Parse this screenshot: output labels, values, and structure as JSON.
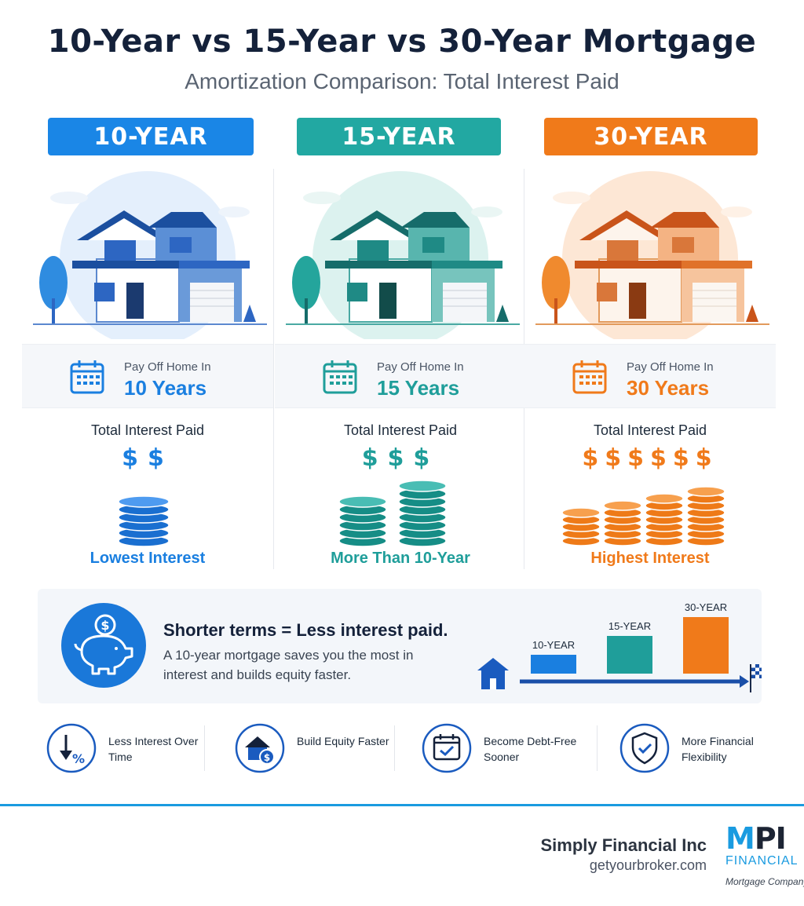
{
  "header": {
    "title": "10-Year vs 15-Year vs 30-Year Mortgage",
    "subtitle": "Amortization Comparison: Total Interest Paid"
  },
  "columns": [
    {
      "banner": "10-YEAR",
      "payoff_label": "Pay Off Home In",
      "payoff_years": "10 Years",
      "interest_label": "Total Interest Paid",
      "dollar_count": 2,
      "dollars": "$$",
      "coin_stacks": 1,
      "verdict": "Lowest Interest",
      "color": "#1a7fe0",
      "light": "#dbeafb"
    },
    {
      "banner": "15-YEAR",
      "payoff_label": "Pay Off Home In",
      "payoff_years": "15 Years",
      "interest_label": "Total Interest Paid",
      "dollar_count": 3,
      "dollars": "$$$",
      "coin_stacks": 2,
      "verdict": "More Than 10-Year",
      "color": "#1f9e9a",
      "light": "#d8f0ee"
    },
    {
      "banner": "30-YEAR",
      "payoff_label": "Pay Off Home In",
      "payoff_years": "30 Years",
      "interest_label": "Total Interest Paid",
      "dollar_count": 6,
      "dollars": "$$$$$$",
      "coin_stacks": 4,
      "verdict": "Highest Interest",
      "color": "#f07a1a",
      "light": "#fde6d2"
    }
  ],
  "summary": {
    "headline": "Shorter terms = Less interest paid.",
    "body": "A 10-year mortgage saves you the most in interest and builds equity faster.",
    "icon": "piggy-bank-icon"
  },
  "chart_data": {
    "type": "bar",
    "categories": [
      "10-YEAR",
      "15-YEAR",
      "30-YEAR"
    ],
    "values": [
      1,
      2,
      3
    ],
    "colors": [
      "#1a7fe0",
      "#1f9e9a",
      "#f07a1a"
    ],
    "title": "",
    "xlabel": "",
    "ylabel": ""
  },
  "benefits": [
    {
      "label": "Less Interest Over Time",
      "icon": "down-arrow-percent-icon"
    },
    {
      "label": "Build Equity Faster",
      "icon": "house-dollar-icon"
    },
    {
      "label": "Become Debt-Free Sooner",
      "icon": "calendar-check-icon"
    },
    {
      "label": "More Financial Flexibility",
      "icon": "shield-check-icon"
    }
  ],
  "footer": {
    "company": "Simply Financial Inc",
    "url": "getyourbroker.com",
    "logo_text": "MPI",
    "logo_sub": "FINANCIAL",
    "logo_tagline": "Mortgage Company"
  }
}
